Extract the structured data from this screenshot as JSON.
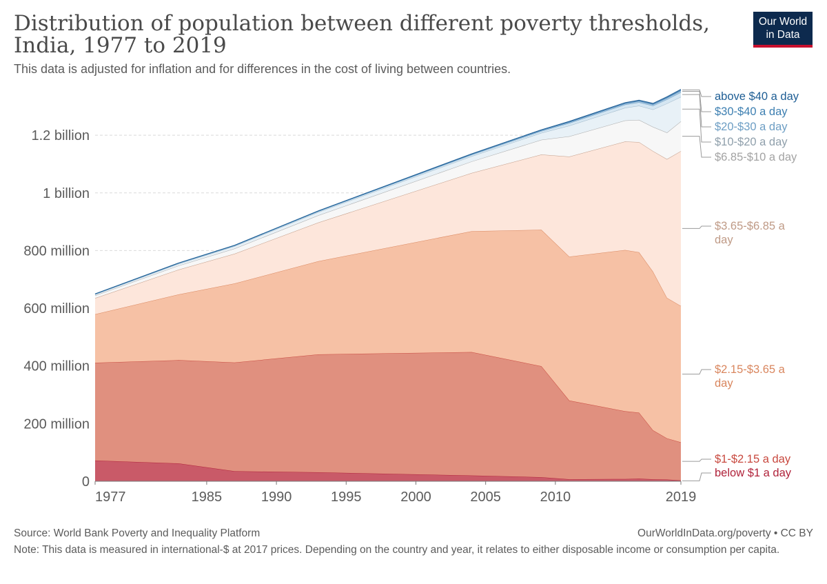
{
  "header": {
    "title": "Distribution of population between different poverty thresholds, India, 1977 to 2019",
    "subtitle": "This data is adjusted for inflation and for differences in the cost of living between countries."
  },
  "logo": {
    "line1": "Our World",
    "line2": "in Data"
  },
  "footer": {
    "source": "Source: World Bank Poverty and Inequality Platform",
    "credit": "OurWorldInData.org/poverty • CC BY",
    "note": "Note: This data is measured in international-$ at 2017 prices. Depending on the country and year, it relates to either disposable income or consumption per capita."
  },
  "chart_data": {
    "type": "area",
    "stacked": true,
    "x": [
      1977,
      1983,
      1987,
      1993,
      2004,
      2009,
      2011,
      2015,
      2016,
      2017,
      2018,
      2019
    ],
    "xticks": [
      {
        "value": 1977,
        "label": "1977"
      },
      {
        "value": 1985,
        "label": "1985"
      },
      {
        "value": 1990,
        "label": "1990"
      },
      {
        "value": 1995,
        "label": "1995"
      },
      {
        "value": 2000,
        "label": "2000"
      },
      {
        "value": 2005,
        "label": "2005"
      },
      {
        "value": 2010,
        "label": "2010"
      },
      {
        "value": 2019,
        "label": "2019"
      }
    ],
    "yticks": [
      {
        "value": 0,
        "label": "0"
      },
      {
        "value": 200000000,
        "label": "200 million"
      },
      {
        "value": 400000000,
        "label": "400 million"
      },
      {
        "value": 600000000,
        "label": "600 million"
      },
      {
        "value": 800000000,
        "label": "800 million"
      },
      {
        "value": 1000000000,
        "label": "1 billion"
      },
      {
        "value": 1200000000,
        "label": "1.2 billion"
      }
    ],
    "xlim": [
      1977,
      2019
    ],
    "ylim": [
      0,
      1370000000
    ],
    "grid": "horizontal dashed",
    "legend_position": "right, labels at series ends",
    "series": [
      {
        "name": "below $1 a day",
        "color": "#b0223a",
        "fill": "#c95a68",
        "values": [
          72000000,
          62000000,
          35000000,
          31000000,
          20000000,
          14000000,
          7000000,
          8000000,
          9000000,
          7000000,
          6000000,
          3000000
        ]
      },
      {
        "name": "$1-$2.15 a day",
        "color": "#c8483e",
        "fill": "#e0907f",
        "values": [
          339000000,
          358000000,
          377000000,
          409000000,
          428000000,
          385000000,
          273000000,
          235000000,
          229000000,
          170000000,
          143000000,
          132000000
        ]
      },
      {
        "name": "$2.15-$3.65 a day",
        "color": "#d9865e",
        "fill": "#f6c1a5",
        "values": [
          168000000,
          228000000,
          274000000,
          323000000,
          419000000,
          473000000,
          499000000,
          559000000,
          556000000,
          550000000,
          487000000,
          473000000
        ]
      },
      {
        "name": "$3.65-$6.85 a day",
        "color": "#bf9a86",
        "fill": "#fde6db",
        "values": [
          56000000,
          86000000,
          103000000,
          134000000,
          202000000,
          261000000,
          347000000,
          376000000,
          382000000,
          418000000,
          481000000,
          537000000
        ]
      },
      {
        "name": "$6.85-$10 a day",
        "color": "#a9a9a9",
        "fill": "#f7f7f7",
        "values": [
          9000000,
          14000000,
          18000000,
          25000000,
          40000000,
          51000000,
          70000000,
          73000000,
          77000000,
          84000000,
          92000000,
          103000000
        ]
      },
      {
        "name": "$10-$20 a day",
        "color": "#a0b8c8",
        "fill": "#e8f1f7",
        "values": [
          4000000,
          6000000,
          8000000,
          11000000,
          18000000,
          24000000,
          37000000,
          44000000,
          49000000,
          60000000,
          101000000,
          85000000
        ]
      },
      {
        "name": "$20-$30 a day",
        "color": "#6d9ec4",
        "fill": "#d5e6f2",
        "values": [
          1000000,
          2000000,
          2000000,
          3000000,
          5000000,
          6000000,
          9000000,
          11000000,
          12000000,
          13000000,
          14000000,
          16000000
        ]
      },
      {
        "name": "$30-$40 a day",
        "color": "#3d7fb1",
        "fill": "#a9c8e1",
        "values": [
          500000,
          700000,
          900000,
          1000000,
          2000000,
          3000000,
          3500000,
          4000000,
          4500000,
          5000000,
          5500000,
          6000000
        ]
      },
      {
        "name": "above $40 a day",
        "color": "#1d5d94",
        "fill": "#5f8fbd",
        "values": [
          400000,
          500000,
          600000,
          800000,
          1500000,
          2000000,
          2500000,
          3000000,
          3200000,
          3500000,
          3800000,
          4000000
        ]
      }
    ],
    "legend_labels": [
      {
        "series": "above $40 a day",
        "lines": [
          "above $40 a day"
        ],
        "color": "#1d5d94"
      },
      {
        "series": "$30-$40 a day",
        "lines": [
          "$30-$40 a day"
        ],
        "color": "#3d7fb1"
      },
      {
        "series": "$20-$30 a day",
        "lines": [
          "$20-$30 a day"
        ],
        "color": "#6d9ec4"
      },
      {
        "series": "$10-$20 a day",
        "lines": [
          "$10-$20 a day"
        ],
        "color": "#8f9fab"
      },
      {
        "series": "$6.85-$10 a day",
        "lines": [
          "$6.85-$10 a day"
        ],
        "color": "#a3a3a3"
      },
      {
        "series": "$3.65-$6.85 a day",
        "lines": [
          "$3.65-$6.85 a",
          "day"
        ],
        "color": "#bf9a86"
      },
      {
        "series": "$2.15-$3.65 a day",
        "lines": [
          "$2.15-$3.65 a",
          "day"
        ],
        "color": "#d9865e"
      },
      {
        "series": "$1-$2.15 a day",
        "lines": [
          "$1-$2.15 a day"
        ],
        "color": "#c8483e"
      },
      {
        "series": "below $1 a day",
        "lines": [
          "below $1 a day"
        ],
        "color": "#b0223a"
      }
    ]
  }
}
